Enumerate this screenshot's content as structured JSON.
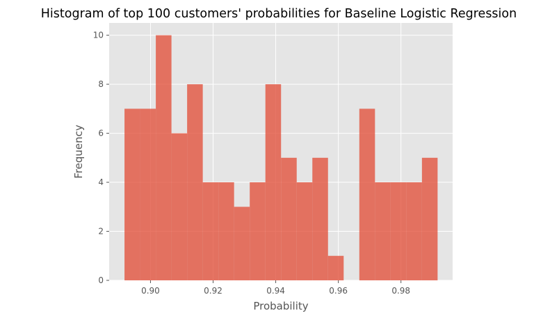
{
  "chart_data": {
    "type": "bar",
    "title": "Histogram of top 100 customers' probabilities for Baseline Logistic Regression",
    "xlabel": "Probability",
    "ylabel": "Frequency",
    "xlim": [
      0.8868,
      0.9965
    ],
    "ylim": [
      0,
      10.5
    ],
    "xticks": [
      0.9,
      0.92,
      0.94,
      0.96,
      0.98
    ],
    "xtick_labels": [
      "0.90",
      "0.92",
      "0.94",
      "0.96",
      "0.98"
    ],
    "yticks": [
      0,
      2,
      4,
      6,
      8,
      10
    ],
    "ytick_labels": [
      "0",
      "2",
      "4",
      "6",
      "8",
      "10"
    ],
    "bin_edges": [
      0.8917,
      0.8967,
      0.9017,
      0.9067,
      0.9117,
      0.9167,
      0.9217,
      0.9267,
      0.9317,
      0.9367,
      0.9417,
      0.9467,
      0.9517,
      0.9567,
      0.9617,
      0.9667,
      0.9717,
      0.9767,
      0.9817,
      0.9867,
      0.9917
    ],
    "values": [
      7,
      7,
      10,
      6,
      8,
      4,
      4,
      3,
      4,
      8,
      5,
      4,
      5,
      1,
      0,
      7,
      4,
      4,
      4,
      5
    ],
    "grid": true,
    "colors": {
      "bar": "#e24a33",
      "plot_background": "#e5e5e5",
      "grid": "#ffffff",
      "text": "#555555",
      "title": "#000000"
    }
  }
}
